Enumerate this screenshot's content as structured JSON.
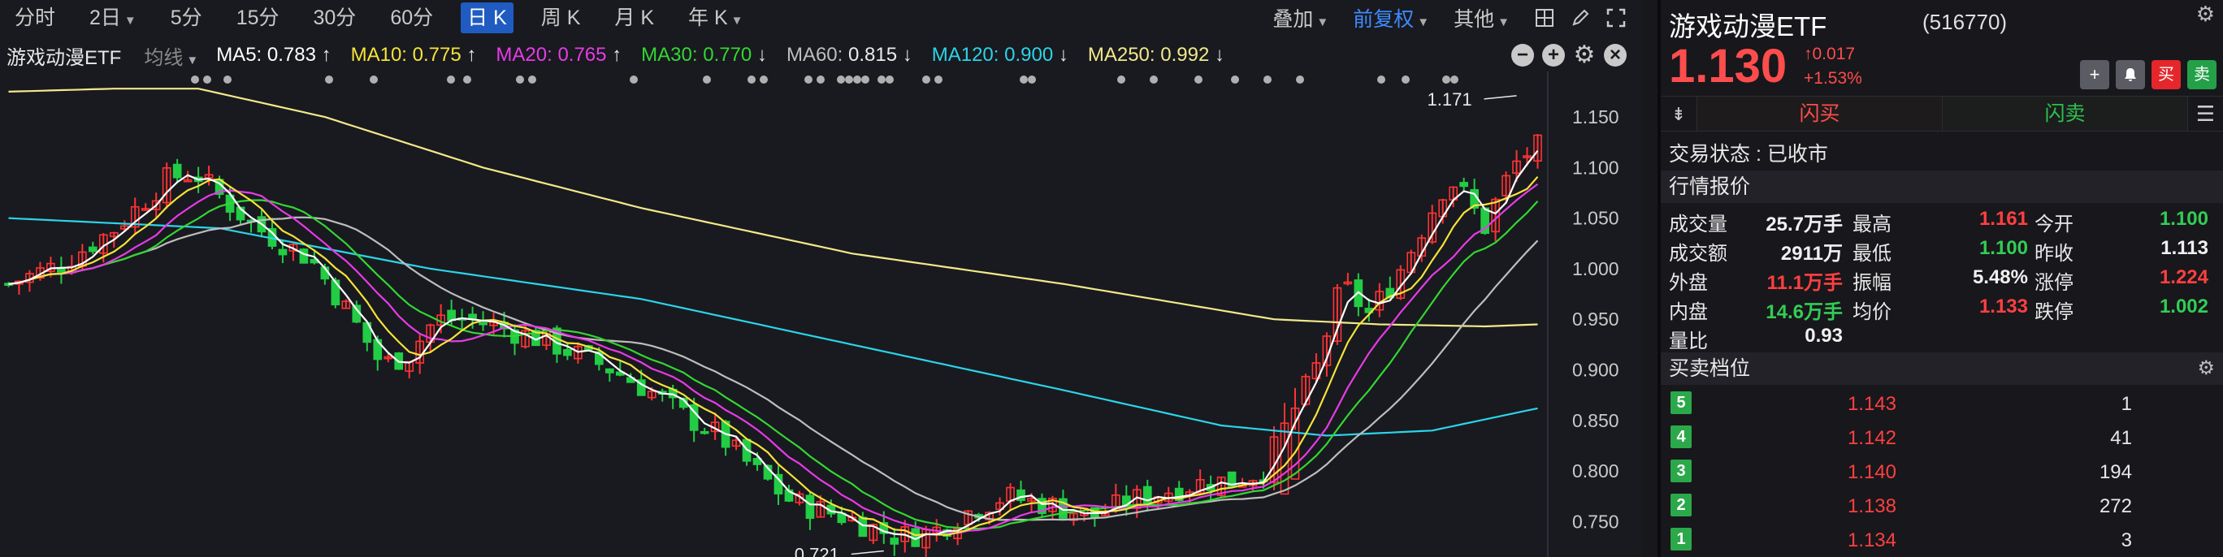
{
  "toolbar": {
    "periods": [
      {
        "label": "分时",
        "caret": false
      },
      {
        "label": "2日",
        "caret": true
      },
      {
        "label": "5分",
        "caret": false
      },
      {
        "label": "15分",
        "caret": false
      },
      {
        "label": "30分",
        "caret": false
      },
      {
        "label": "60分",
        "caret": false
      },
      {
        "label": "日 K",
        "caret": false,
        "active": true
      },
      {
        "label": "周 K",
        "caret": false
      },
      {
        "label": "月 K",
        "caret": false
      },
      {
        "label": "年 K",
        "caret": true
      }
    ],
    "overlay": "叠加",
    "adjust": "前复权",
    "other": "其他"
  },
  "ma_bar": {
    "name": "游戏动漫ETF",
    "avg_label": "均线",
    "items": [
      {
        "label": "MA5:",
        "value": "0.783",
        "arrow": "↑",
        "color": "#ffffff"
      },
      {
        "label": "MA10:",
        "value": "0.775",
        "arrow": "↑",
        "color": "#f5e33a"
      },
      {
        "label": "MA20:",
        "value": "0.765",
        "arrow": "↑",
        "color": "#e63be6"
      },
      {
        "label": "MA30:",
        "value": "0.770",
        "arrow": "↓",
        "color": "#33d633"
      },
      {
        "label": "MA60:",
        "value": "0.815",
        "arrow": "↓",
        "color": "#bdbdbd"
      },
      {
        "label": "MA120:",
        "value": "0.900",
        "arrow": "↓",
        "color": "#2bd4e8"
      },
      {
        "label": "MA250:",
        "value": "0.992",
        "arrow": "↓",
        "color": "#f2e98a"
      }
    ]
  },
  "chart_data": {
    "type": "candlestick",
    "y_ticks": [
      "1.150",
      "1.100",
      "1.050",
      "1.000",
      "0.950",
      "0.900",
      "0.850",
      "0.800",
      "0.750"
    ],
    "ylim": [
      0.715,
      1.195
    ],
    "annotations": [
      {
        "text": "1.171",
        "index": 143,
        "value": 1.171
      },
      {
        "text": "0.721",
        "index": 83,
        "value": 0.721
      }
    ],
    "ma250_anchor": [
      [
        0,
        1.175
      ],
      [
        10,
        1.178
      ],
      [
        18,
        1.178
      ],
      [
        30,
        1.15
      ],
      [
        45,
        1.1
      ],
      [
        60,
        1.06
      ],
      [
        80,
        1.015
      ],
      [
        100,
        0.985
      ],
      [
        120,
        0.95
      ],
      [
        130,
        0.945
      ],
      [
        140,
        0.943
      ],
      [
        145,
        0.945
      ]
    ],
    "ma120_anchor": [
      [
        0,
        1.05
      ],
      [
        20,
        1.04
      ],
      [
        40,
        1.0
      ],
      [
        60,
        0.97
      ],
      [
        80,
        0.925
      ],
      [
        100,
        0.88
      ],
      [
        115,
        0.845
      ],
      [
        125,
        0.835
      ],
      [
        135,
        0.84
      ],
      [
        145,
        0.862
      ]
    ],
    "colors": {
      "up": "#ff3333",
      "down": "#22cc44",
      "ma5": "#ffffff",
      "ma10": "#f5e33a",
      "ma20": "#e63be6",
      "ma30": "#33d633",
      "ma60": "#bdbdbd",
      "ma120": "#2bd4e8",
      "ma250": "#f2e98a"
    }
  },
  "quote": {
    "name": "游戏动漫ETF",
    "code": "(516770)",
    "price": "1.130",
    "change": "↑0.017",
    "change_pct": "+1.53%",
    "btn_add": "+",
    "btn_bell": "🔔",
    "btn_buy": "买",
    "btn_sell": "卖",
    "flash_buy": "闪买",
    "flash_sell": "闪卖",
    "trade_status": "交易状态 : 已收市",
    "section_quote": "行情报价",
    "section_book": "买卖档位",
    "rows": [
      [
        {
          "l": "成交量",
          "v": "25.7万手",
          "c": "w"
        },
        {
          "l": "最高",
          "v": "1.161",
          "c": "r"
        },
        {
          "l": "今开",
          "v": "1.100",
          "c": "g"
        }
      ],
      [
        {
          "l": "成交额",
          "v": "2911万",
          "c": "w"
        },
        {
          "l": "最低",
          "v": "1.100",
          "c": "g"
        },
        {
          "l": "昨收",
          "v": "1.113",
          "c": "w"
        }
      ],
      [
        {
          "l": "外盘",
          "v": "11.1万手",
          "c": "r"
        },
        {
          "l": "振幅",
          "v": "5.48%",
          "c": "w"
        },
        {
          "l": "涨停",
          "v": "1.224",
          "c": "r"
        }
      ],
      [
        {
          "l": "内盘",
          "v": "14.6万手",
          "c": "g"
        },
        {
          "l": "均价",
          "v": "1.133",
          "c": "r"
        },
        {
          "l": "跌停",
          "v": "1.002",
          "c": "g"
        }
      ],
      [
        {
          "l": "量比",
          "v": "0.93",
          "c": "w"
        }
      ]
    ],
    "book": [
      {
        "level": "5",
        "price": "1.143",
        "volume": "1"
      },
      {
        "level": "4",
        "price": "1.142",
        "volume": "41"
      },
      {
        "level": "3",
        "price": "1.140",
        "volume": "194"
      },
      {
        "level": "2",
        "price": "1.138",
        "volume": "272"
      },
      {
        "level": "1",
        "price": "1.134",
        "volume": "3"
      }
    ]
  }
}
